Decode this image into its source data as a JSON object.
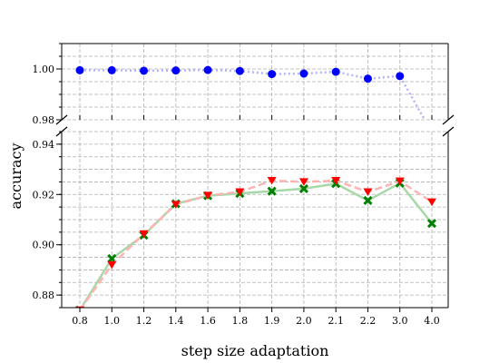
{
  "chart_data": {
    "type": "line",
    "xlabel": "step size adaptation",
    "ylabel": "accuracy",
    "categories": [
      "0.8",
      "1.0",
      "1.2",
      "1.4",
      "1.6",
      "1.8",
      "1.9",
      "2.0",
      "2.1",
      "2.2",
      "3.0",
      "4.0"
    ],
    "broken_y_axis": true,
    "upper_panel": {
      "ylim": [
        0.98,
        1.01
      ],
      "yticks": [
        "0.98",
        "1.00"
      ],
      "ytick_values": [
        0.98,
        1.0
      ],
      "grid": true,
      "series": [
        {
          "marker": "circle",
          "line_style": "dotted",
          "color": "#0000ff",
          "line_color": "#b3b3ff",
          "values": [
            0.9995,
            0.9995,
            0.9993,
            0.9994,
            0.9996,
            0.9992,
            0.998,
            0.9982,
            0.9989,
            0.9962,
            0.9972,
            0.975
          ]
        }
      ]
    },
    "lower_panel": {
      "ylim": [
        0.875,
        0.945
      ],
      "yticks": [
        "0.88",
        "0.90",
        "0.92",
        "0.94"
      ],
      "ytick_values": [
        0.88,
        0.9,
        0.92,
        0.94
      ],
      "grid": true,
      "series": [
        {
          "marker": "x",
          "line_style": "solid",
          "color": "#008000",
          "line_color": "#a8d8a8",
          "values": [
            0.874,
            0.8945,
            0.9038,
            0.9163,
            0.9195,
            0.9204,
            0.9213,
            0.9223,
            0.9243,
            0.9176,
            0.9245,
            0.9085
          ]
        },
        {
          "marker": "triangle-down",
          "line_style": "dashed",
          "color": "#ff0000",
          "line_color": "#ffb3b3",
          "values": [
            0.874,
            0.892,
            0.9043,
            0.916,
            0.9196,
            0.921,
            0.9255,
            0.925,
            0.9255,
            0.921,
            0.9253,
            0.917
          ]
        }
      ]
    }
  }
}
